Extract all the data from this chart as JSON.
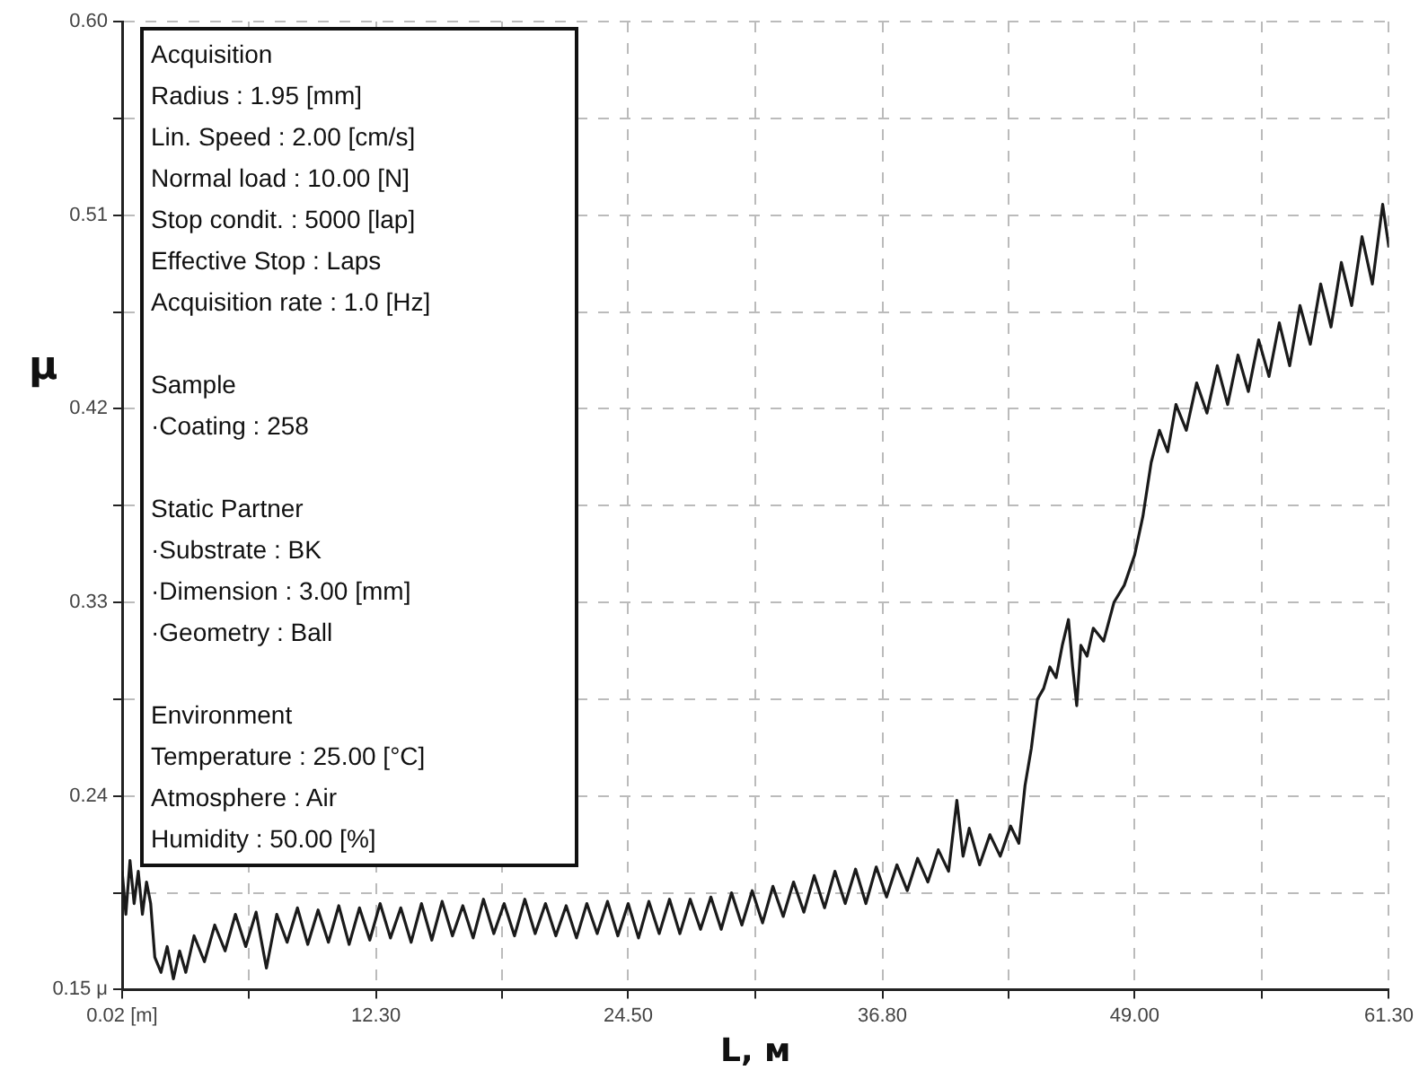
{
  "chart_data": {
    "type": "line",
    "xlabel": "L, м",
    "ylabel": "μ",
    "xlim": [
      0.02,
      61.3
    ],
    "xticks": [
      {
        "value": 0.02,
        "label": "0.02 [m]"
      },
      {
        "value": 6.16,
        "label": null
      },
      {
        "value": 12.3,
        "label": "12.30"
      },
      {
        "value": 18.4,
        "label": null
      },
      {
        "value": 24.5,
        "label": "24.50"
      },
      {
        "value": 30.65,
        "label": null
      },
      {
        "value": 36.8,
        "label": "36.80"
      },
      {
        "value": 42.9,
        "label": null
      },
      {
        "value": 49.0,
        "label": "49.00"
      },
      {
        "value": 55.15,
        "label": null
      },
      {
        "value": 61.3,
        "label": "61.30"
      }
    ],
    "ylim": [
      0.15,
      0.6
    ],
    "yticks": [
      {
        "value": 0.15,
        "label": "0.15 μ"
      },
      {
        "value": 0.195,
        "label": null
      },
      {
        "value": 0.24,
        "label": "0.24"
      },
      {
        "value": 0.285,
        "label": null
      },
      {
        "value": 0.33,
        "label": "0.33"
      },
      {
        "value": 0.375,
        "label": null
      },
      {
        "value": 0.42,
        "label": "0.42"
      },
      {
        "value": 0.465,
        "label": null
      },
      {
        "value": 0.51,
        "label": "0.51"
      },
      {
        "value": 0.555,
        "label": null
      },
      {
        "value": 0.6,
        "label": "0.60"
      }
    ],
    "grid": true,
    "legend": false,
    "marker": "none",
    "line_style": "solid",
    "annotations": [
      "Acquisition\nRadius : 1.95 [mm]\nLin. Speed : 2.00 [cm/s]\nNormal load : 10.00 [N]\nStop condit. : 5000 [lap]\nEffective Stop : Laps\nAcquisition rate : 1.0 [Hz]",
      "Sample\n·Coating : 258",
      "Static Partner\n·Substrate : BK\n·Dimension : 3.00 [mm]\n·Geometry : Ball",
      "Environment\nTemperature : 25.00 [°C]\nAtmosphere : Air\nHumidity : 50.00 [%]"
    ],
    "series": [
      {
        "color": "#1a1a1a",
        "x": [
          0.02,
          0.2,
          0.4,
          0.6,
          0.8,
          1.0,
          1.2,
          1.4,
          1.6,
          1.9,
          2.2,
          2.5,
          2.8,
          3.1,
          3.5,
          4.0,
          4.5,
          5.0,
          5.5,
          6.0,
          6.5,
          7.0,
          7.5,
          8.0,
          8.5,
          9.0,
          9.5,
          10.0,
          10.5,
          11.0,
          11.5,
          12.0,
          12.5,
          13.0,
          13.5,
          14.0,
          14.5,
          15.0,
          15.5,
          16.0,
          16.5,
          17.0,
          17.5,
          18.0,
          18.5,
          19.0,
          19.5,
          20.0,
          20.5,
          21.0,
          21.5,
          22.0,
          22.5,
          23.0,
          23.5,
          24.0,
          24.5,
          25.0,
          25.5,
          26.0,
          26.5,
          27.0,
          27.5,
          28.0,
          28.5,
          29.0,
          29.5,
          30.0,
          30.5,
          31.0,
          31.5,
          32.0,
          32.5,
          33.0,
          33.5,
          34.0,
          34.5,
          35.0,
          35.5,
          36.0,
          36.5,
          37.0,
          37.5,
          38.0,
          38.5,
          39.0,
          39.5,
          40.0,
          40.4,
          40.7,
          41.0,
          41.5,
          42.0,
          42.5,
          43.0,
          43.4,
          43.7,
          44.0,
          44.3,
          44.6,
          44.9,
          45.2,
          45.5,
          45.8,
          46.0,
          46.2,
          46.4,
          46.7,
          47.0,
          47.5,
          48.0,
          48.5,
          49.0,
          49.4,
          49.8,
          50.2,
          50.6,
          51.0,
          51.5,
          52.0,
          52.5,
          53.0,
          53.5,
          54.0,
          54.5,
          55.0,
          55.5,
          56.0,
          56.5,
          57.0,
          57.5,
          58.0,
          58.5,
          59.0,
          59.5,
          60.0,
          60.5,
          61.0,
          61.3
        ],
        "values": [
          0.205,
          0.185,
          0.21,
          0.19,
          0.205,
          0.185,
          0.2,
          0.19,
          0.165,
          0.158,
          0.17,
          0.155,
          0.168,
          0.158,
          0.175,
          0.163,
          0.18,
          0.168,
          0.185,
          0.17,
          0.186,
          0.16,
          0.185,
          0.172,
          0.188,
          0.171,
          0.187,
          0.172,
          0.189,
          0.171,
          0.188,
          0.173,
          0.19,
          0.174,
          0.188,
          0.172,
          0.19,
          0.173,
          0.191,
          0.175,
          0.189,
          0.174,
          0.192,
          0.176,
          0.19,
          0.175,
          0.192,
          0.176,
          0.19,
          0.175,
          0.189,
          0.174,
          0.19,
          0.176,
          0.191,
          0.175,
          0.19,
          0.174,
          0.191,
          0.176,
          0.192,
          0.176,
          0.192,
          0.178,
          0.193,
          0.178,
          0.195,
          0.18,
          0.196,
          0.181,
          0.198,
          0.184,
          0.2,
          0.186,
          0.203,
          0.188,
          0.205,
          0.19,
          0.206,
          0.19,
          0.207,
          0.193,
          0.208,
          0.196,
          0.211,
          0.2,
          0.215,
          0.205,
          0.238,
          0.212,
          0.225,
          0.208,
          0.222,
          0.212,
          0.226,
          0.218,
          0.245,
          0.262,
          0.285,
          0.29,
          0.3,
          0.295,
          0.31,
          0.322,
          0.3,
          0.282,
          0.31,
          0.305,
          0.318,
          0.312,
          0.33,
          0.338,
          0.352,
          0.37,
          0.395,
          0.41,
          0.4,
          0.422,
          0.41,
          0.432,
          0.418,
          0.44,
          0.422,
          0.445,
          0.428,
          0.452,
          0.435,
          0.46,
          0.44,
          0.468,
          0.45,
          0.478,
          0.458,
          0.488,
          0.468,
          0.5,
          0.478,
          0.515,
          0.495
        ]
      }
    ]
  }
}
